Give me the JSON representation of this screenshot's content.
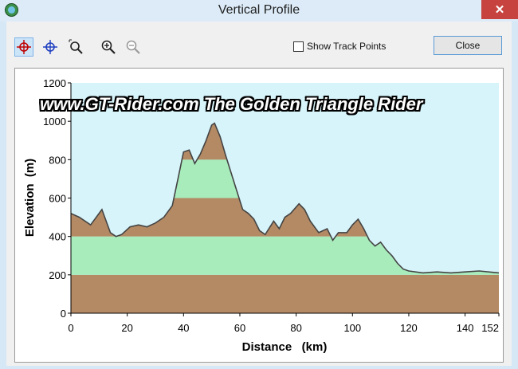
{
  "window": {
    "title": "Vertical Profile",
    "close_glyph": "✕",
    "app_icon": "globe-icon"
  },
  "toolbar": {
    "tools": [
      {
        "name": "crosshair-red-icon",
        "active": true
      },
      {
        "name": "crosshair-blue-icon",
        "active": false
      },
      {
        "name": "zoom-box-icon",
        "active": false
      },
      {
        "name": "zoom-in-icon",
        "active": false
      },
      {
        "name": "zoom-out-icon",
        "active": false
      }
    ],
    "show_track_points_label": "Show Track Points",
    "show_track_points_checked": false,
    "close_label": "Close"
  },
  "watermark": "www.GT-Rider.com   The Golden Triangle Rider",
  "chart_data": {
    "type": "area",
    "xlabel": "Distance   (km)",
    "ylabel": "Elevation  (m)",
    "xlim": [
      0,
      152
    ],
    "ylim": [
      0,
      1200
    ],
    "x_ticks": [
      0,
      20,
      40,
      60,
      80,
      100,
      120,
      140,
      152
    ],
    "y_ticks": [
      0,
      200,
      400,
      600,
      800,
      1000,
      1200
    ],
    "band_colors": [
      "#b48a64",
      "#a8ecbc"
    ],
    "sky_color": "#d6f4fa",
    "line_color": "#444444",
    "grid": false,
    "series": [
      {
        "x": [
          0,
          3,
          7,
          11,
          14,
          16,
          18,
          21,
          24,
          27,
          30,
          33,
          36,
          38,
          40,
          42,
          44,
          46,
          48,
          50,
          51,
          53,
          55,
          58,
          61,
          63,
          65,
          67,
          69,
          72,
          74,
          76,
          78,
          81,
          83,
          85,
          88,
          91,
          93,
          95,
          98,
          100,
          102,
          104,
          106,
          108,
          110,
          112,
          114,
          116,
          118,
          120,
          125,
          130,
          135,
          140,
          145,
          152
        ],
        "y": [
          520,
          500,
          460,
          540,
          420,
          400,
          410,
          450,
          460,
          450,
          470,
          500,
          560,
          700,
          840,
          850,
          780,
          830,
          900,
          980,
          990,
          920,
          820,
          680,
          540,
          520,
          490,
          430,
          410,
          480,
          440,
          500,
          520,
          570,
          540,
          480,
          420,
          440,
          380,
          420,
          420,
          460,
          490,
          440,
          380,
          350,
          370,
          330,
          300,
          260,
          230,
          220,
          210,
          215,
          210,
          215,
          220,
          210
        ]
      }
    ]
  }
}
